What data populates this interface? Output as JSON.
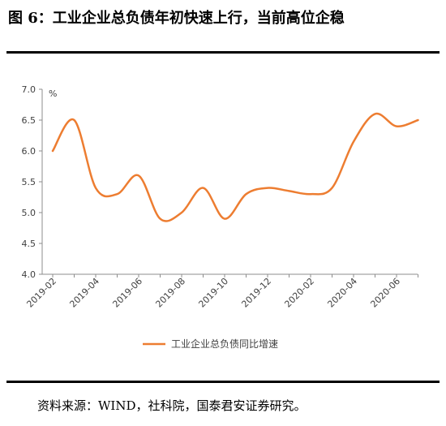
{
  "figure": {
    "title": "图 6：工业企业总负债年初快速上行，当前高位企稳",
    "source": "资料来源：WIND，社科院，国泰君安证券研究。"
  },
  "chart_data": {
    "type": "line",
    "unit_label": "%",
    "categories": [
      "2019-02",
      "2019-03",
      "2019-04",
      "2019-05",
      "2019-06",
      "2019-07",
      "2019-08",
      "2019-09",
      "2019-10",
      "2019-11",
      "2019-12",
      "2020-01",
      "2020-02",
      "2020-03",
      "2020-04",
      "2020-05",
      "2020-06",
      "2020-07"
    ],
    "x_tick_labels": [
      "2019-02",
      "2019-04",
      "2019-06",
      "2019-08",
      "2019-10",
      "2019-12",
      "2020-02",
      "2020-04",
      "2020-06"
    ],
    "series": [
      {
        "name": "工业企业总负债同比增速",
        "color": "#ED7D31",
        "values": [
          6.0,
          6.5,
          5.4,
          5.3,
          5.6,
          4.9,
          5.0,
          5.4,
          4.9,
          5.3,
          5.4,
          5.35,
          5.3,
          5.4,
          6.15,
          6.6,
          6.4,
          6.5
        ]
      }
    ],
    "y_ticks": [
      "4.0",
      "4.5",
      "5.0",
      "5.5",
      "6.0",
      "6.5",
      "7.0"
    ],
    "ylim": [
      4.0,
      7.0
    ],
    "grid": false,
    "legend_position": "bottom"
  }
}
